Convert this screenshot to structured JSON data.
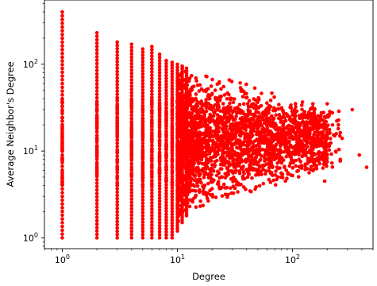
{
  "chart_data": {
    "type": "scatter",
    "xlabel": "Degree",
    "ylabel": "Average Neighbor's Degree",
    "x_scale": "log",
    "y_scale": "log",
    "xlim": [
      0.7,
      500
    ],
    "ylim": [
      0.75,
      550
    ],
    "grid": false,
    "marker_color": "#ff0000",
    "x_ticks": [
      {
        "value": 1,
        "base": "10",
        "exp": "0"
      },
      {
        "value": 10,
        "base": "10",
        "exp": "1"
      },
      {
        "value": 100,
        "base": "10",
        "exp": "2"
      }
    ],
    "y_ticks": [
      {
        "value": 1,
        "base": "10",
        "exp": "0"
      },
      {
        "value": 10,
        "base": "10",
        "exp": "1"
      },
      {
        "value": 100,
        "base": "10",
        "exp": "2"
      }
    ],
    "columns": [
      {
        "x": 1,
        "ymin": 1,
        "ymax": 400
      },
      {
        "x": 2,
        "ymin": 1,
        "ymax": 230
      },
      {
        "x": 3,
        "ymin": 1,
        "ymax": 180
      },
      {
        "x": 4,
        "ymin": 1,
        "ymax": 170
      },
      {
        "x": 5,
        "ymin": 1,
        "ymax": 150
      },
      {
        "x": 6,
        "ymin": 1,
        "ymax": 160
      },
      {
        "x": 7,
        "ymin": 1,
        "ymax": 130
      },
      {
        "x": 8,
        "ymin": 1,
        "ymax": 110
      },
      {
        "x": 9,
        "ymin": 1,
        "ymax": 105
      },
      {
        "x": 10,
        "ymin": 1.2,
        "ymax": 100
      },
      {
        "x": 11,
        "ymin": 1.5,
        "ymax": 95
      },
      {
        "x": 12,
        "ymin": 1.8,
        "ymax": 90
      }
    ],
    "cloud_envelope": [
      {
        "x": 10,
        "ymin": 1.5,
        "ymax": 100
      },
      {
        "x": 15,
        "ymin": 2.2,
        "ymax": 85
      },
      {
        "x": 20,
        "ymin": 2.6,
        "ymax": 75
      },
      {
        "x": 30,
        "ymin": 3.0,
        "ymax": 65
      },
      {
        "x": 50,
        "ymin": 3.5,
        "ymax": 55
      },
      {
        "x": 70,
        "ymin": 4.0,
        "ymax": 45
      },
      {
        "x": 100,
        "ymin": 4.5,
        "ymax": 40
      },
      {
        "x": 150,
        "ymin": 5.5,
        "ymax": 35
      },
      {
        "x": 200,
        "ymin": 6.5,
        "ymax": 30
      }
    ],
    "outliers": [
      {
        "x": 330,
        "y": 30
      },
      {
        "x": 380,
        "y": 9
      },
      {
        "x": 440,
        "y": 6.5
      },
      {
        "x": 260,
        "y": 8
      },
      {
        "x": 270,
        "y": 14
      },
      {
        "x": 250,
        "y": 20
      },
      {
        "x": 200,
        "y": 35
      },
      {
        "x": 190,
        "y": 4.5
      }
    ]
  }
}
